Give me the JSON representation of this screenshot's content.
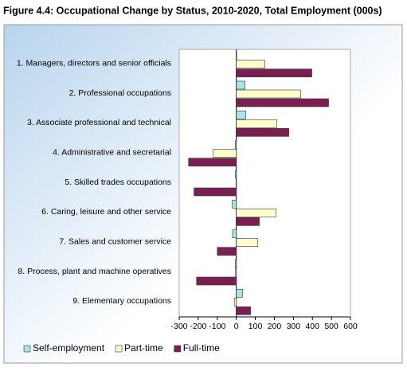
{
  "chart_data": {
    "type": "bar",
    "orientation": "horizontal",
    "title": "Figure 4.4:  Occupational Change by Status, 2010-2020, Total Employment (000s)",
    "categories": [
      "1. Managers, directors and senior officials",
      "2. Professional occupations",
      "3. Associate professional and technical",
      "4. Administrative and secretarial",
      "5. Skilled trades occupations",
      "6. Caring, leisure and other service",
      "7. Sales and customer service",
      "8. Process, plant and machine operatives",
      "9. Elementary occupations"
    ],
    "series": [
      {
        "name": "Self-employment",
        "color": "#a6e6e6",
        "values": [
          2,
          46,
          50,
          -5,
          -5,
          -21,
          -20,
          -5,
          33
        ]
      },
      {
        "name": "Part-time",
        "color": "#ffffcc",
        "values": [
          150,
          339,
          213,
          -121,
          0,
          209,
          113,
          -5,
          -10
        ]
      },
      {
        "name": "Full-time",
        "color": "#7b1f52",
        "values": [
          397,
          485,
          276,
          -251,
          -222,
          121,
          -100,
          -209,
          75
        ]
      }
    ],
    "xlim": [
      -300,
      600
    ],
    "xticks": [
      -300,
      -200,
      -100,
      0,
      100,
      200,
      300,
      400,
      500,
      600
    ],
    "legend": "bottom"
  }
}
